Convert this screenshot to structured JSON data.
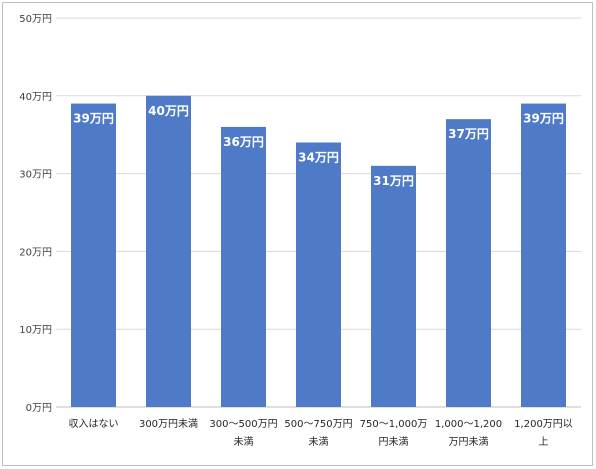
{
  "chart_data": {
    "type": "bar",
    "categories": [
      [
        "収入はない"
      ],
      [
        "300万円未満"
      ],
      [
        "300～500万円",
        "未満"
      ],
      [
        "500～750万円",
        "未満"
      ],
      [
        "750～1,000万",
        "円未満"
      ],
      [
        "1,000～1,200",
        "万円未満"
      ],
      [
        "1,200万円以",
        "上"
      ]
    ],
    "values": [
      39,
      40,
      36,
      34,
      31,
      37,
      39
    ],
    "data_labels": [
      "39万円",
      "40万円",
      "36万円",
      "34万円",
      "31万円",
      "37万円",
      "39万円"
    ],
    "yticks": [
      0,
      10,
      20,
      30,
      40,
      50
    ],
    "ytick_labels": [
      "0万円",
      "10万円",
      "20万円",
      "30万円",
      "40万円",
      "50万円"
    ],
    "ylim": [
      0,
      50
    ],
    "grid": true,
    "bar_color": "#4f7ac7",
    "title": "",
    "xlabel": "",
    "ylabel": ""
  }
}
